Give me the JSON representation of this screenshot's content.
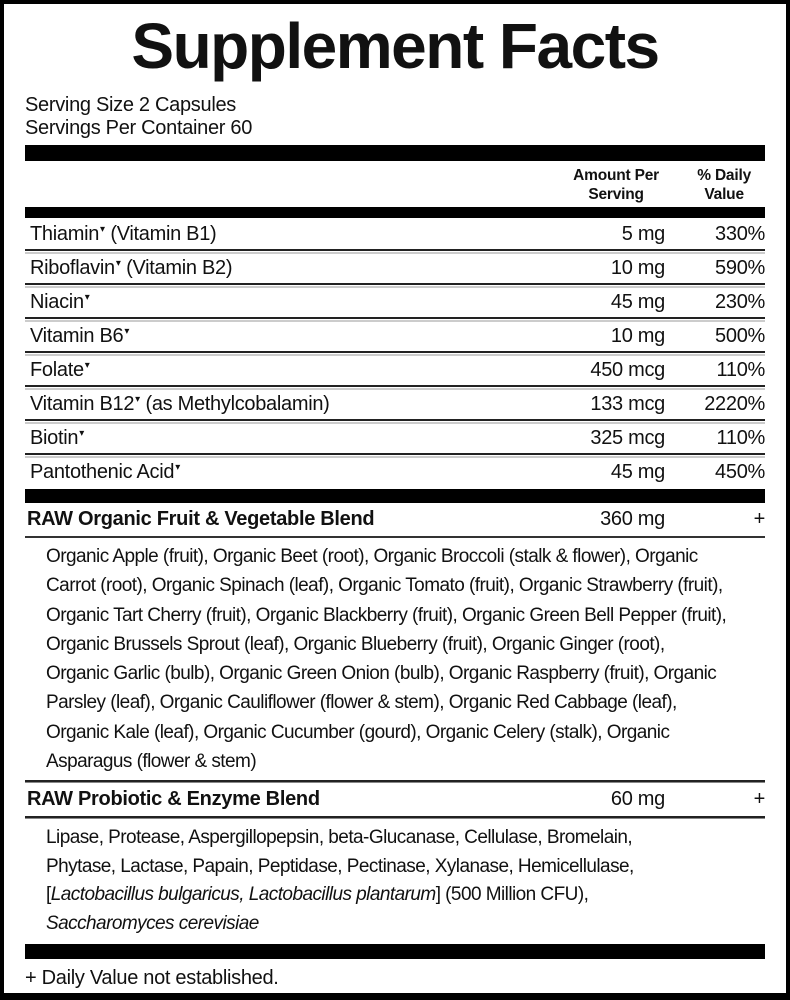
{
  "title": "Supplement Facts",
  "serving": {
    "size": "Serving Size 2 Capsules",
    "per_container": "Servings Per Container 60"
  },
  "columns": {
    "amount_header": "Amount Per\nServing",
    "dv_header": "% Daily\nValue"
  },
  "footnote_mark": "▾",
  "nutrients": [
    {
      "name": "Thiamin",
      "mark": "▾",
      "detail": " (Vitamin B1)",
      "amount": "5 mg",
      "dv": "330%"
    },
    {
      "name": "Riboflavin",
      "mark": "▾",
      "detail": " (Vitamin B2)",
      "amount": "10 mg",
      "dv": "590%"
    },
    {
      "name": "Niacin",
      "mark": "▾",
      "detail": "",
      "amount": "45 mg",
      "dv": "230%"
    },
    {
      "name": "Vitamin B6",
      "mark": "▾",
      "detail": "",
      "amount": "10 mg",
      "dv": "500%"
    },
    {
      "name": "Folate",
      "mark": "▾",
      "detail": "",
      "amount": "450 mcg",
      "dv": "110%"
    },
    {
      "name": "Vitamin B12",
      "mark": "▾",
      "detail": " (as Methylcobalamin)",
      "amount": "133 mcg",
      "dv": "2220%"
    },
    {
      "name": "Biotin",
      "mark": "▾",
      "detail": "",
      "amount": "325 mcg",
      "dv": "110%"
    },
    {
      "name": "Pantothenic Acid",
      "mark": "▾",
      "detail": "",
      "amount": "45 mg",
      "dv": "450%"
    }
  ],
  "blends": [
    {
      "name": "RAW Organic Fruit & Vegetable Blend",
      "amount": "360 mg",
      "dv": "+",
      "lines": [
        "Organic Apple (fruit), Organic Beet (root), Organic Broccoli (stalk & flower), Organic",
        "Carrot (root), Organic Spinach (leaf), Organic Tomato (fruit), Organic Strawberry (fruit),",
        "Organic Tart Cherry (fruit), Organic Blackberry (fruit), Organic Green Bell Pepper (fruit),",
        "Organic Brussels Sprout (leaf), Organic Blueberry (fruit), Organic Ginger (root),",
        "Organic Garlic (bulb), Organic Green Onion (bulb), Organic Raspberry (fruit), Organic",
        "Parsley (leaf), Organic Cauliflower (flower & stem), Organic Red Cabbage (leaf),",
        "Organic Kale (leaf), Organic Cucumber (gourd), Organic Celery (stalk), Organic",
        "Asparagus (flower & stem)"
      ]
    },
    {
      "name": "RAW Probiotic & Enzyme Blend",
      "amount": "60 mg",
      "dv": "+",
      "lines": [
        "Lipase, Protease, Aspergillopepsin, beta-Glucanase, Cellulase, Bromelain,",
        "Phytase, Lactase, Papain, Peptidase, Pectinase, Xylanase, Hemicellulase,"
      ],
      "bracket_line": {
        "prefix": "[",
        "italic": "Lactobacillus bulgaricus, Lactobacillus plantarum",
        "suffix": "] (500 Million CFU),"
      },
      "final_italic": "Saccharomyces cerevisiae"
    }
  ],
  "footnote": "+ Daily Value not established.",
  "colors": {
    "bar": "#000000",
    "text": "#111111",
    "divider_dark": "#222222",
    "divider_light": "#999999"
  }
}
